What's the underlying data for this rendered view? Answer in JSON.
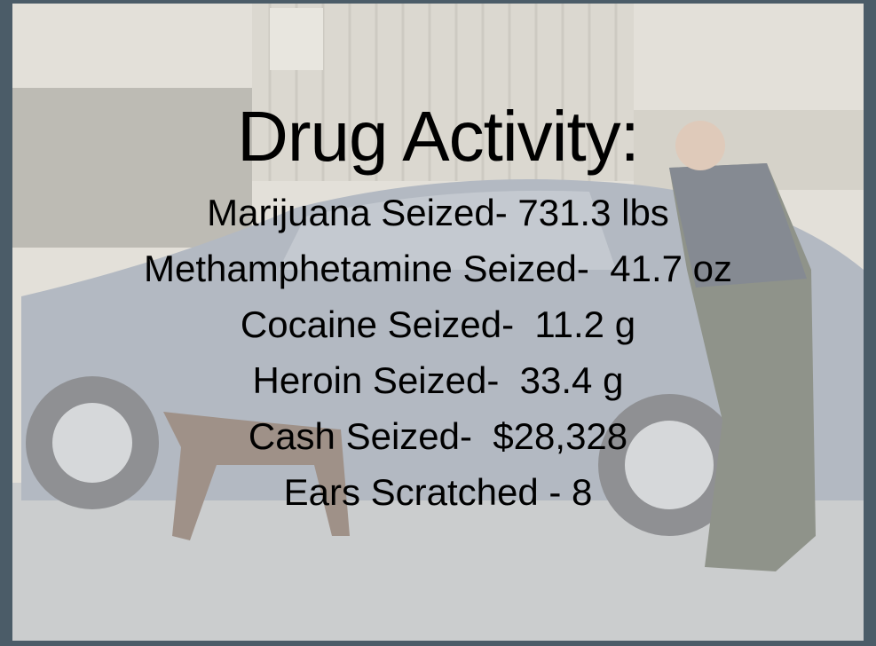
{
  "title": "Drug Activity:",
  "lines": [
    "Marijuana Seized- 731.3 lbs",
    "Methamphetamine Seized-  41.7 oz",
    "Cocaine Seized-  11.2 g",
    "Heroin Seized-  33.4 g",
    "Cash Seized-  $28,328",
    "Ears Scratched - 8"
  ]
}
